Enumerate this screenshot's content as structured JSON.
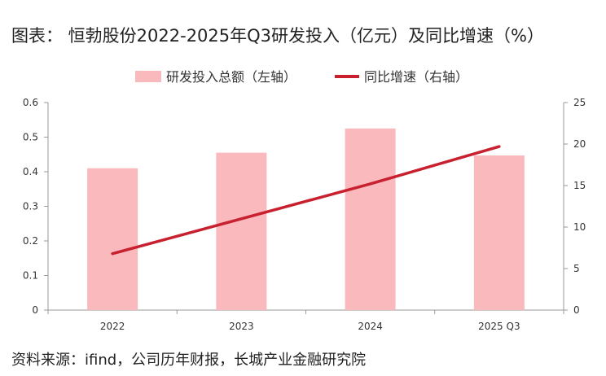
{
  "header": {
    "title": "图表：  恒勃股份2022-2025年Q3研发投入（亿元）及同比增速（%）"
  },
  "footer": {
    "source": "资料来源：ifind，公司历年财报，长城产业金融研究院"
  },
  "chart_data": {
    "type": "bar",
    "title": "恒勃股份2022-2025年Q3研发投入（亿元）及同比增速（%）",
    "categories": [
      "2022",
      "2023",
      "2024",
      "2025 Q3"
    ],
    "series": [
      {
        "name": "研发投入总额（左轴）",
        "type": "bar",
        "axis": "left",
        "color": "#f9b9bd",
        "values": [
          0.41,
          0.455,
          0.525,
          0.447
        ]
      },
      {
        "name": "同比增速（右轴）",
        "type": "line",
        "axis": "right",
        "color": "#c8202e",
        "values": [
          6.8,
          11.0,
          15.2,
          19.7
        ]
      }
    ],
    "left_axis": {
      "min": 0,
      "max": 0.6,
      "ticks": [
        "0",
        "0.1",
        "0.2",
        "0.3",
        "0.4",
        "0.5",
        "0.6"
      ]
    },
    "right_axis": {
      "min": 0,
      "max": 25,
      "ticks": [
        "0",
        "5",
        "10",
        "15",
        "20",
        "25"
      ]
    },
    "legend_position": "top-center",
    "grid": false
  }
}
